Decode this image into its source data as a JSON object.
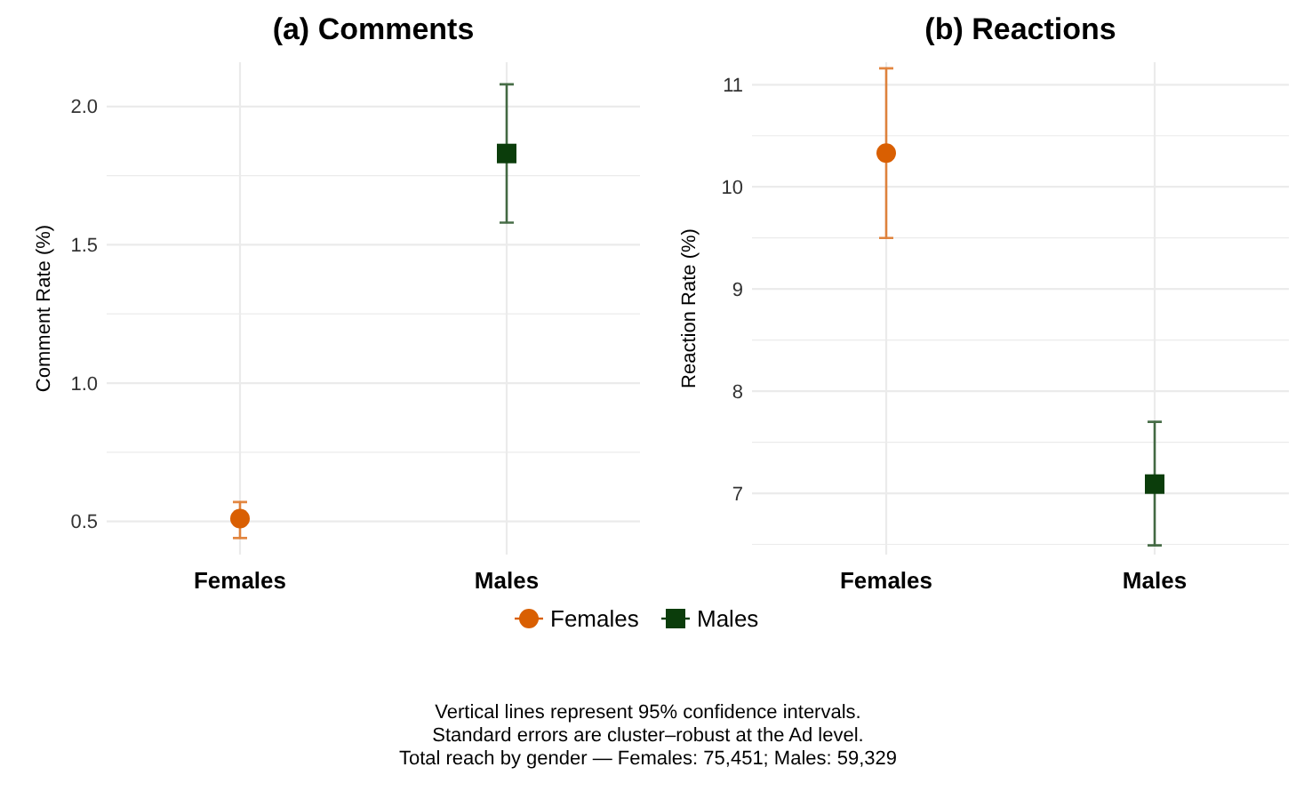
{
  "chart_data": [
    {
      "type": "scatter",
      "title": "(a) Comments",
      "ylabel": "Comment Rate (%)",
      "categories": [
        "Females",
        "Males"
      ],
      "series": [
        {
          "name": "Females",
          "color": "#d95f02",
          "marker": "circle",
          "values": [
            0.51,
            null
          ],
          "errors": [
            [
              0.44,
              0.57
            ],
            null
          ]
        },
        {
          "name": "Males",
          "color": "#0b3d0b",
          "marker": "square",
          "values": [
            null,
            1.83
          ],
          "errors": [
            null,
            [
              1.58,
              2.08
            ]
          ]
        }
      ],
      "ylim": [
        0.38,
        2.16
      ],
      "yticks": [
        0.5,
        {
          "value": 0.75,
          "label": null
        },
        {
          "value": 1,
          "label": "1.0"
        },
        {
          "value": 1.25,
          "label": null
        },
        1.5,
        {
          "value": 1.75,
          "label": null
        },
        {
          "value": 2,
          "label": "2.0"
        }
      ],
      "grid": true,
      "legend": "bottom",
      "annotations": [
        "Vertical lines represent 95% confidence intervals.",
        "Standard errors are cluster–robust at the Ad level.",
        "Total reach by gender — Females: 75,451; Males: 59,329"
      ]
    },
    {
      "type": "scatter",
      "title": "(b) Reactions",
      "ylabel": "Reaction Rate (%)",
      "categories": [
        "Females",
        "Males"
      ],
      "series": [
        {
          "color": "#d95f02",
          "marker": "circle",
          "values": [
            10.33,
            null
          ],
          "errors": [
            [
              9.5,
              11.16
            ],
            null
          ]
        },
        {
          "color": "#0b3d0b",
          "marker": "square",
          "values": [
            null,
            7.09
          ],
          "errors": [
            null,
            [
              6.49,
              7.7
            ]
          ]
        }
      ],
      "ylim": [
        6.4,
        11.22
      ],
      "yticks": [
        {
          "value": 6.5,
          "label": null
        },
        7,
        {
          "value": 7.5,
          "label": null
        },
        8,
        {
          "value": 8.5,
          "label": null
        },
        9,
        {
          "value": 9.5,
          "label": null
        },
        10,
        {
          "value": 10.5,
          "label": null
        },
        11
      ],
      "grid": true
    }
  ]
}
